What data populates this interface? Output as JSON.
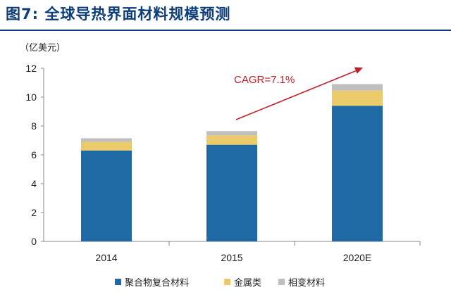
{
  "header": {
    "title": "图7:  全球导热界面材料规模预测"
  },
  "chart_data": {
    "type": "bar",
    "stacked": true,
    "unit_label": "（亿美元）",
    "categories": [
      "2014",
      "2015",
      "2020E"
    ],
    "series": [
      {
        "name": "聚合物复合材料",
        "color": "#1f6aa5",
        "values": [
          6.3,
          6.7,
          9.4
        ]
      },
      {
        "name": "金属类",
        "color": "#ebca6a",
        "values": [
          0.6,
          0.65,
          1.05
        ]
      },
      {
        "name": "相变材料",
        "color": "#bfbfbf",
        "values": [
          0.25,
          0.3,
          0.45
        ]
      }
    ],
    "ylim": [
      0,
      12
    ],
    "yticks": [
      "0",
      "2",
      "4",
      "6",
      "8",
      "10",
      "12"
    ],
    "annotation": {
      "text": "CAGR=7.1%",
      "color": "#c0202a"
    },
    "legend_position": "bottom",
    "grid": false
  }
}
